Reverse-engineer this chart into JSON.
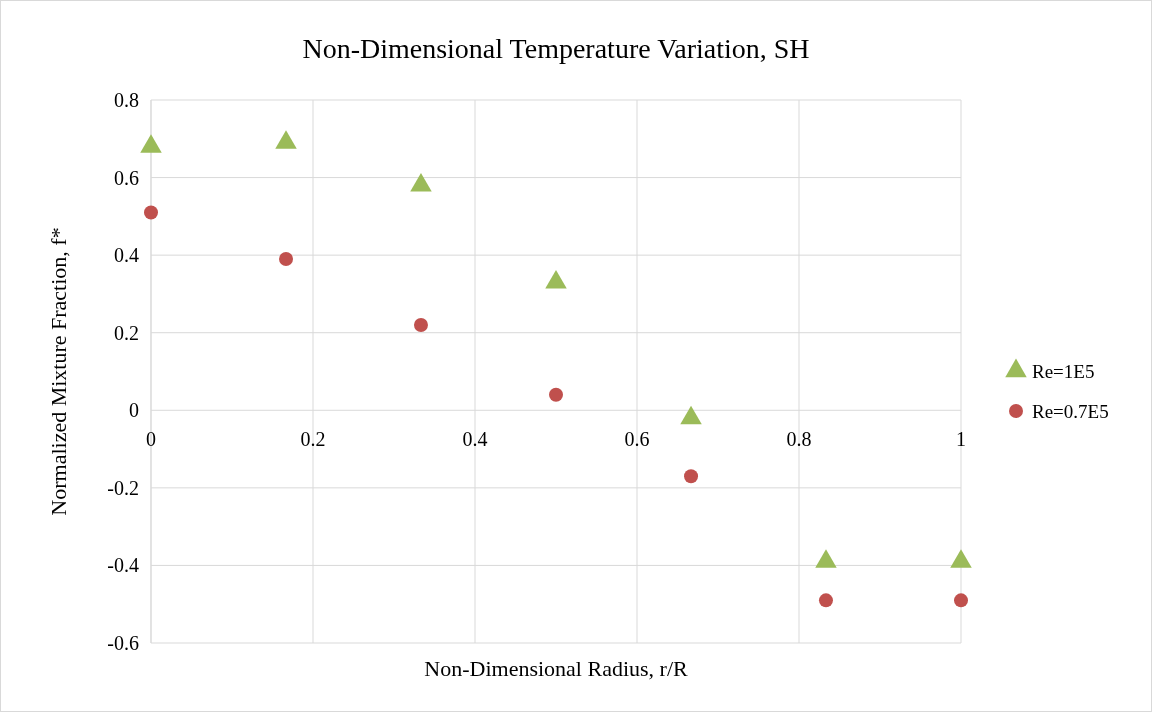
{
  "chart_data": {
    "type": "scatter",
    "title": "Non-Dimensional Temperature Variation, SH",
    "xlabel": "Non-Dimensional Radius, r/R",
    "ylabel": "Normalized Mixture Fraction, f*",
    "x": [
      0,
      0.1667,
      0.3333,
      0.5,
      0.6667,
      0.8333,
      1
    ],
    "series": [
      {
        "name": "Re=1E5",
        "color": "#9bbb59",
        "marker": "triangle",
        "values": [
          0.68,
          0.69,
          0.58,
          0.33,
          -0.02,
          -0.39,
          -0.39
        ]
      },
      {
        "name": "Re=0.7E5",
        "color": "#c0504d",
        "marker": "circle",
        "values": [
          0.51,
          0.39,
          0.22,
          0.04,
          -0.17,
          -0.49,
          -0.49
        ]
      }
    ],
    "xlim": [
      0,
      1
    ],
    "ylim": [
      -0.6,
      0.8
    ],
    "xticks": [
      0,
      0.2,
      0.4,
      0.6,
      0.8,
      1
    ],
    "yticks": [
      -0.6,
      -0.4,
      -0.2,
      0,
      0.2,
      0.4,
      0.6,
      0.8
    ],
    "grid": true,
    "legend": "right"
  }
}
